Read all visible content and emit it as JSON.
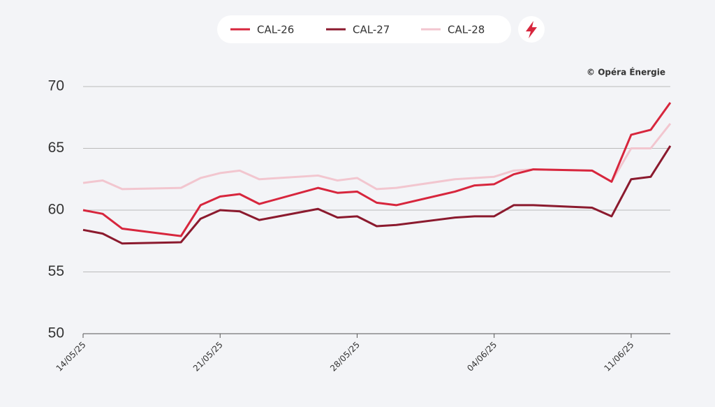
{
  "chart_data": {
    "type": "line",
    "credit": "© Opéra Énergie",
    "x": [
      "2025-05-14",
      "2025-05-15",
      "2025-05-16",
      "2025-05-19",
      "2025-05-20",
      "2025-05-21",
      "2025-05-22",
      "2025-05-23",
      "2025-05-26",
      "2025-05-27",
      "2025-05-28",
      "2025-05-29",
      "2025-05-30",
      "2025-06-02",
      "2025-06-03",
      "2025-06-04",
      "2025-06-05",
      "2025-06-06",
      "2025-06-09",
      "2025-06-10",
      "2025-06-11",
      "2025-06-12",
      "2025-06-13"
    ],
    "series": [
      {
        "name": "CAL-26",
        "color": "#d7263d",
        "values": [
          60.0,
          59.7,
          58.5,
          57.9,
          60.4,
          61.1,
          61.3,
          60.5,
          61.8,
          61.4,
          61.5,
          60.6,
          60.4,
          61.5,
          62.0,
          62.1,
          62.9,
          63.3,
          63.2,
          62.3,
          66.1,
          66.5,
          68.7
        ]
      },
      {
        "name": "CAL-27",
        "color": "#8b1a2e",
        "values": [
          58.4,
          58.1,
          57.3,
          57.4,
          59.3,
          60.0,
          59.9,
          59.2,
          60.1,
          59.4,
          59.5,
          58.7,
          58.8,
          59.4,
          59.5,
          59.5,
          60.4,
          60.4,
          60.2,
          59.5,
          62.5,
          62.7,
          65.2
        ]
      },
      {
        "name": "CAL-28",
        "color": "#f2c6cf",
        "values": [
          62.2,
          62.4,
          61.7,
          61.8,
          62.6,
          63.0,
          63.2,
          62.5,
          62.8,
          62.4,
          62.6,
          61.7,
          61.8,
          62.5,
          62.6,
          62.7,
          63.2,
          63.3,
          63.2,
          62.3,
          65.0,
          65.0,
          67.0
        ]
      }
    ],
    "xlim": [
      "2025-05-14",
      "2025-06-13"
    ],
    "xticks": [
      {
        "value": "2025-05-14",
        "label": "14/05/25"
      },
      {
        "value": "2025-05-21",
        "label": "21/05/25"
      },
      {
        "value": "2025-05-28",
        "label": "28/05/25"
      },
      {
        "value": "2025-06-04",
        "label": "04/06/25"
      },
      {
        "value": "2025-06-11",
        "label": "11/06/25"
      }
    ],
    "ylim": [
      50,
      70
    ],
    "yticks": [
      50,
      55,
      60,
      65,
      70
    ],
    "grid": true
  }
}
